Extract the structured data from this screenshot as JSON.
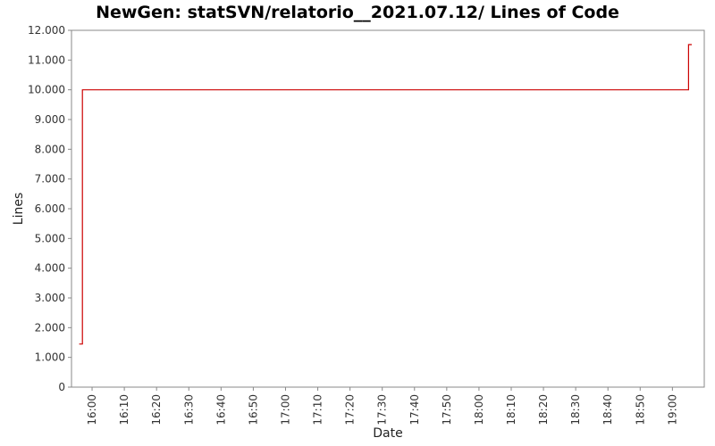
{
  "chart_data": {
    "type": "line",
    "title": "NewGen: statSVN/relatorio__2021.07.12/ Lines of Code",
    "xlabel": "Date",
    "ylabel": "Lines",
    "x_ticks": [
      "16:00",
      "16:10",
      "16:20",
      "16:30",
      "16:40",
      "16:50",
      "17:00",
      "17:10",
      "17:20",
      "17:30",
      "17:40",
      "17:50",
      "18:00",
      "18:10",
      "18:20",
      "18:30",
      "18:40",
      "18:50",
      "19:00"
    ],
    "y_ticks": [
      "0",
      "1.000",
      "2.000",
      "3.000",
      "4.000",
      "5.000",
      "6.000",
      "7.000",
      "8.000",
      "9.000",
      "10.000",
      "11.000",
      "12.000"
    ],
    "ylim": [
      0,
      12000
    ],
    "xlim": [
      "15:55",
      "19:06"
    ],
    "grid": false,
    "step": true,
    "series": [
      {
        "color": "#cc0000",
        "x": [
          "15:56",
          "15:57",
          "19:05",
          "19:06"
        ],
        "values": [
          1450,
          10000,
          11520,
          11520
        ]
      }
    ]
  }
}
